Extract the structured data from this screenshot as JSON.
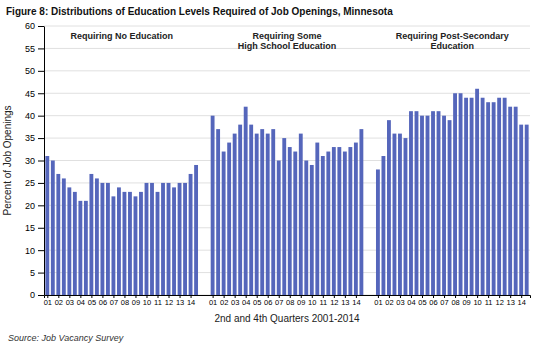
{
  "chart_data": {
    "type": "bar",
    "title": "Figure 8: Distributions of Education Levels Required of Job Openings, Minnesota",
    "xlabel": "2nd and 4th Quarters 2001-2014",
    "ylabel": "Percent of Job Openings",
    "source": "Source: Job Vacancy Survey",
    "color": "#5566BB",
    "ylim": [
      0,
      60
    ],
    "yticks": [
      0,
      5,
      10,
      15,
      20,
      25,
      30,
      35,
      40,
      45,
      50,
      55,
      60
    ],
    "grid": true,
    "categories": [
      "01",
      null,
      "02",
      null,
      "03",
      null,
      "04",
      null,
      "05",
      null,
      "06",
      null,
      "07",
      null,
      "08",
      null,
      "09",
      null,
      "10",
      null,
      "11",
      null,
      "12",
      null,
      "13",
      null,
      "14",
      null
    ],
    "groups": [
      {
        "label": "Requiring No Education",
        "values": [
          31,
          30,
          27,
          26,
          24,
          23,
          21,
          21,
          27,
          26,
          25,
          25,
          22,
          24,
          23,
          23,
          22,
          23,
          25,
          25,
          23,
          25,
          25,
          24,
          25,
          25,
          27,
          29
        ]
      },
      {
        "label": "Requiring Some\nHigh School Education",
        "values": [
          40,
          37,
          32,
          34,
          36,
          38,
          42,
          38,
          36,
          37,
          36,
          37,
          30,
          35,
          33,
          32,
          36,
          30,
          29,
          34,
          31,
          32,
          33,
          33,
          32,
          33,
          34,
          37
        ]
      },
      {
        "label": "Requiring Post-Secondary\nEducation",
        "values": [
          28,
          31,
          39,
          36,
          36,
          35,
          41,
          41,
          40,
          40,
          41,
          41,
          40,
          39,
          45,
          45,
          44,
          44,
          46,
          44,
          43,
          43,
          44,
          44,
          42,
          42,
          38,
          38
        ]
      }
    ]
  }
}
